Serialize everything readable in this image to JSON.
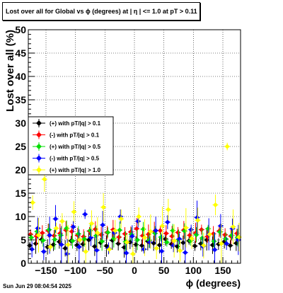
{
  "title": "Lost over all for Global vs ϕ (degrees) at |  η  | <= 1.0 at pT > 0.11",
  "footer_date": "Sun Jun 29 08:04:54 2025",
  "chart_data": {
    "type": "scatter",
    "xlabel": "ϕ (degrees)",
    "ylabel": "Lost over all (%)",
    "xlim": [
      -180,
      180
    ],
    "ylim": [
      0,
      50
    ],
    "grid": true,
    "legend_position": "middle-left",
    "x_ticks": [
      -150,
      -100,
      -50,
      0,
      50,
      100,
      150
    ],
    "x_tick_labels": [
      "−150",
      "−100",
      "−50",
      "0",
      "50",
      "100",
      "150"
    ],
    "y_ticks": [
      0,
      5,
      10,
      15,
      20,
      25,
      30,
      35,
      40,
      45,
      50
    ],
    "y_tick_labels": [
      "0",
      "5",
      "10",
      "15",
      "20",
      "25",
      "30",
      "35",
      "40",
      "45",
      "50"
    ],
    "x": [
      -175,
      -165,
      -155,
      -145,
      -135,
      -125,
      -115,
      -105,
      -95,
      -85,
      -75,
      -65,
      -55,
      -45,
      -35,
      -25,
      -15,
      -5,
      5,
      15,
      25,
      35,
      45,
      55,
      65,
      75,
      85,
      95,
      105,
      115,
      125,
      135,
      145,
      155,
      165,
      175
    ],
    "series": [
      {
        "name": "(+) with pT/|q| > 0.1",
        "color": "#000000",
        "values": [
          3.8,
          4.2,
          5.1,
          3.5,
          4.0,
          4.6,
          3.2,
          4.8,
          3.9,
          4.1,
          5.0,
          3.6,
          4.4,
          3.7,
          4.9,
          4.2,
          3.4,
          4.5,
          4.0,
          3.8,
          4.7,
          4.3,
          3.9,
          5.2,
          4.1,
          3.6,
          4.4,
          4.8,
          3.7,
          4.2,
          5.0,
          3.9,
          4.1,
          4.6,
          3.8,
          4.3
        ]
      },
      {
        "name": "(-) with pT/|q| > 0.1",
        "color": "#ff0000",
        "values": [
          6.2,
          5.8,
          6.5,
          7.0,
          5.9,
          6.4,
          7.1,
          6.8,
          6.0,
          5.7,
          6.9,
          7.3,
          6.1,
          6.6,
          7.2,
          5.6,
          6.3,
          6.7,
          7.4,
          5.9,
          6.2,
          6.8,
          7.0,
          6.4,
          5.8,
          6.6,
          7.1,
          6.0,
          6.5,
          7.2,
          5.7,
          6.3,
          6.9,
          6.1,
          5.8,
          6.4
        ]
      },
      {
        "name": "(+) with pT/|q| > 0.5",
        "color": "#00dd00",
        "values": [
          5.5,
          6.8,
          4.9,
          7.2,
          5.1,
          6.0,
          7.5,
          4.8,
          6.3,
          5.2,
          7.0,
          5.9,
          4.7,
          6.6,
          5.3,
          7.1,
          4.6,
          6.2,
          5.0,
          7.3,
          4.9,
          6.4,
          5.6,
          4.5,
          7.0,
          5.1,
          6.9,
          4.8,
          6.1,
          5.4,
          7.4,
          4.7,
          6.7,
          5.2,
          6.0,
          5.5
        ]
      },
      {
        "name": "(-) with pT/|q| > 0.5",
        "color": "#0000ff",
        "values": [
          3.0,
          7.5,
          2.5,
          6.0,
          9.5,
          4.0,
          2.0,
          7.8,
          3.5,
          10.5,
          5.5,
          2.8,
          8.2,
          3.2,
          6.5,
          10.0,
          2.2,
          5.8,
          9.0,
          3.0,
          4.5,
          7.0,
          2.6,
          8.8,
          3.8,
          5.2,
          2.3,
          7.2,
          9.8,
          3.6,
          6.2,
          2.9,
          8.0,
          4.2,
          7.4,
          5.0
        ]
      },
      {
        "name": "(+) with pT/|q| > 1.0",
        "color": "#ffff00",
        "values": [
          13.0,
          6.0,
          18.0,
          3.5,
          7.5,
          9.0,
          4.0,
          11.0,
          5.0,
          2.5,
          8.5,
          6.5,
          12.0,
          3.0,
          7.0,
          9.5,
          4.5,
          2.0,
          10.0,
          5.5,
          6.8,
          3.2,
          8.0,
          11.5,
          4.8,
          2.7,
          7.6,
          5.3,
          9.2,
          3.8,
          6.2,
          12.5,
          4.2,
          25.0,
          7.8,
          5.6
        ]
      }
    ]
  }
}
